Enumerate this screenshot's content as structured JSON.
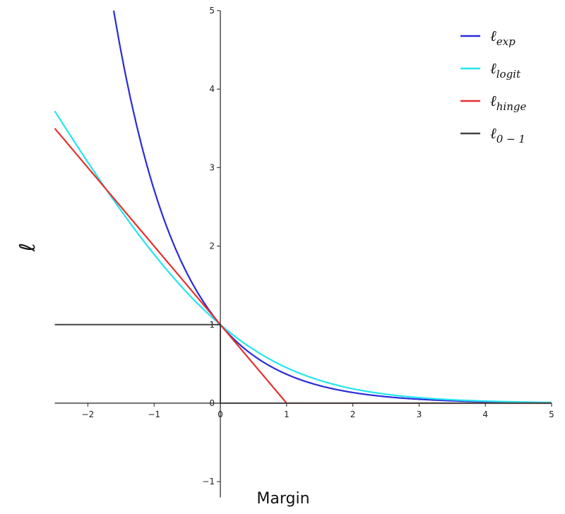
{
  "chart_data": {
    "type": "line",
    "xlabel": "Margin",
    "ylabel": "ℓ",
    "xlim": [
      -2.5,
      5
    ],
    "ylim": [
      -1.2,
      5
    ],
    "x_ticks": [
      -2,
      -1,
      0,
      1,
      2,
      3,
      4,
      5
    ],
    "x_tick_labels": [
      "−2",
      "−1",
      "0",
      "1",
      "2",
      "3",
      "4",
      "5"
    ],
    "y_ticks": [
      -1,
      0,
      1,
      2,
      3,
      4,
      5
    ],
    "y_tick_labels": [
      "−1",
      "0",
      "1",
      "2",
      "3",
      "4",
      "5"
    ],
    "grid": false,
    "legend_position": "top-right",
    "series": [
      {
        "name": "ℓexp",
        "legend_base": "ℓ",
        "legend_sub": "exp",
        "color": "#2b2bdb",
        "x": [
          -1.6,
          -1.4,
          -1.2,
          -1.0,
          -0.8,
          -0.6,
          -0.4,
          -0.2,
          0,
          0.5,
          1,
          1.5,
          2,
          2.5,
          3,
          3.5,
          4,
          4.5,
          5
        ],
        "y": [
          4.953,
          4.055,
          3.32,
          2.718,
          2.226,
          1.822,
          1.492,
          1.221,
          1.0,
          0.607,
          0.368,
          0.223,
          0.135,
          0.082,
          0.05,
          0.03,
          0.018,
          0.011,
          0.007
        ]
      },
      {
        "name": "ℓlogit",
        "legend_base": "ℓ",
        "legend_sub": "logit",
        "color": "#22e6ee",
        "x": [
          -2.5,
          -2.0,
          -1.5,
          -1.0,
          -0.5,
          0,
          0.5,
          1,
          1.5,
          2,
          2.5,
          3,
          3.5,
          4,
          4.5,
          5
        ],
        "y": [
          3.723,
          3.069,
          2.445,
          1.892,
          1.407,
          1.0,
          0.683,
          0.452,
          0.291,
          0.183,
          0.114,
          0.07,
          0.043,
          0.026,
          0.016,
          0.01
        ]
      },
      {
        "name": "ℓhinge",
        "legend_base": "ℓ",
        "legend_sub": "hinge",
        "color": "#e6302f",
        "x": [
          -2.5,
          0,
          1,
          5
        ],
        "y": [
          3.5,
          1.0,
          0,
          0
        ]
      },
      {
        "name": "ℓ0−1",
        "legend_base": "ℓ",
        "legend_sub": "0 − 1",
        "color": "#444444",
        "x": [
          -2.5,
          0,
          0,
          5
        ],
        "y": [
          1.0,
          1.0,
          0,
          0
        ]
      }
    ]
  }
}
